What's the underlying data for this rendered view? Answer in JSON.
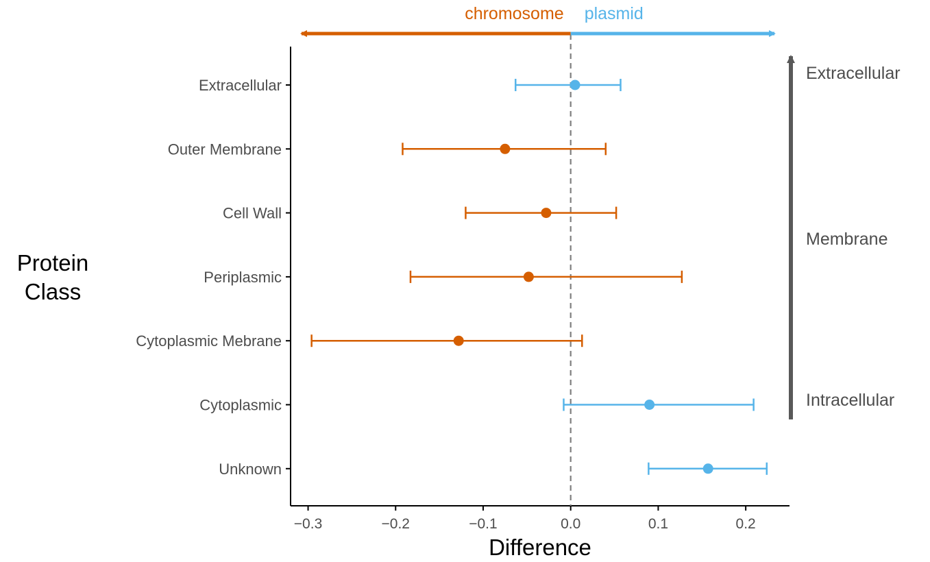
{
  "colors": {
    "chromosome": "#D55E00",
    "plasmid": "#56B4E9",
    "axis": "#000000",
    "reference_line": "#7f7f7f",
    "side_arrow": "#595959",
    "text": "#4d4d4d"
  },
  "chart_data": {
    "type": "scatter",
    "variant": "point-range (dot with horizontal error bars)",
    "xlabel": "Difference",
    "ylabel_lines": [
      "Protein",
      "Class"
    ],
    "xlim": [
      -0.32,
      0.25
    ],
    "xticks": [
      -0.3,
      -0.2,
      -0.1,
      0.0,
      0.1,
      0.2
    ],
    "xtick_labels": [
      "−0.3",
      "−0.2",
      "−0.1",
      "0.0",
      "0.1",
      "0.2"
    ],
    "reference_line": {
      "x": 0.0,
      "style": "dashed"
    },
    "grid": false,
    "categories": [
      "Extracellular",
      "Outer Membrane",
      "Cell Wall",
      "Periplasmic",
      "Cytoplasmic Mebrane",
      "Cytoplasmic",
      "Unknown"
    ],
    "points": [
      {
        "category": "Extracellular",
        "estimate": 0.005,
        "lower": -0.063,
        "upper": 0.057,
        "group": "plasmid"
      },
      {
        "category": "Outer Membrane",
        "estimate": -0.075,
        "lower": -0.192,
        "upper": 0.04,
        "group": "chromosome"
      },
      {
        "category": "Cell Wall",
        "estimate": -0.028,
        "lower": -0.12,
        "upper": 0.052,
        "group": "chromosome"
      },
      {
        "category": "Periplasmic",
        "estimate": -0.048,
        "lower": -0.183,
        "upper": 0.127,
        "group": "chromosome"
      },
      {
        "category": "Cytoplasmic Mebrane",
        "estimate": -0.128,
        "lower": -0.296,
        "upper": 0.013,
        "group": "chromosome"
      },
      {
        "category": "Cytoplasmic",
        "estimate": 0.09,
        "lower": -0.008,
        "upper": 0.209,
        "group": "plasmid"
      },
      {
        "category": "Unknown",
        "estimate": 0.157,
        "lower": 0.089,
        "upper": 0.224,
        "group": "plasmid"
      }
    ],
    "direction_labels": {
      "left": "chromosome",
      "right": "plasmid"
    },
    "side_annotation": {
      "direction": "upward",
      "labels": [
        "Extracellular",
        "Membrane",
        "Intracellular"
      ]
    }
  }
}
